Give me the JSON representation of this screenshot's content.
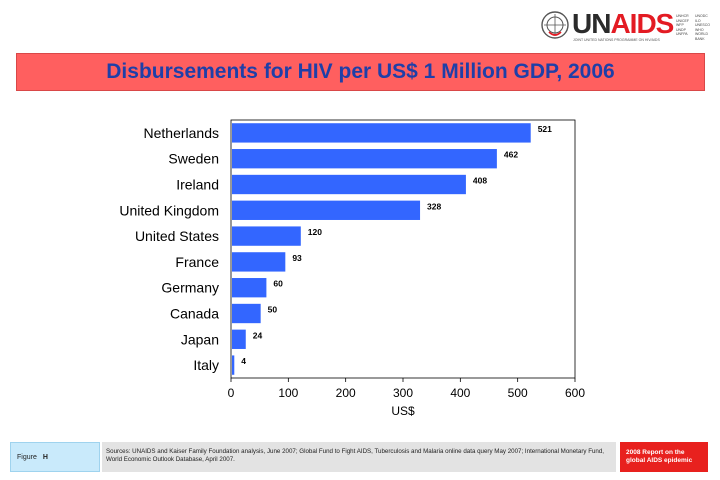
{
  "logo": {
    "un": "UN",
    "aids": "AIDS",
    "tagline": "JOINT UNITED NATIONS PROGRAMME ON HIV/AIDS",
    "cosponsors_col1": [
      "UNHCR",
      "UNICEF",
      "WFP",
      "UNDP",
      "UNFPA"
    ],
    "cosponsors_col2": [
      "UNODC",
      "ILO",
      "UNESCO",
      "WHO",
      "WORLD BANK"
    ]
  },
  "chart_data": {
    "type": "bar",
    "orientation": "horizontal",
    "title": "Disbursements for HIV per US$ 1 Million GDP, 2006",
    "categories": [
      "Netherlands",
      "Sweden",
      "Ireland",
      "United Kingdom",
      "United States",
      "France",
      "Germany",
      "Canada",
      "Japan",
      "Italy"
    ],
    "values": [
      521,
      462,
      408,
      328,
      120,
      93,
      60,
      50,
      24,
      4
    ],
    "xlabel": "US$",
    "ylabel": "",
    "xlim": [
      0,
      600
    ],
    "xticks": [
      0,
      100,
      200,
      300,
      400,
      500,
      600
    ],
    "grid": false,
    "bar_color": "#3366ff"
  },
  "footer": {
    "figure_label": "Figure",
    "figure_number": "H",
    "sources": "Sources: UNAIDS and Kaiser Family Foundation analysis, June 2007; Global Fund to Fight AIDS, Tuberculosis and Malaria online data query May 2007; International Monetary Fund, World Economic Outlook Database, April 2007.",
    "report_line1": "2008 Report on the",
    "report_line2": "global AIDS epidemic"
  },
  "colors": {
    "title_bar": "#ff5f5f",
    "title_text": "#1f3fa8",
    "figure_box": "#c9eafb",
    "report_box": "#e8211e"
  }
}
